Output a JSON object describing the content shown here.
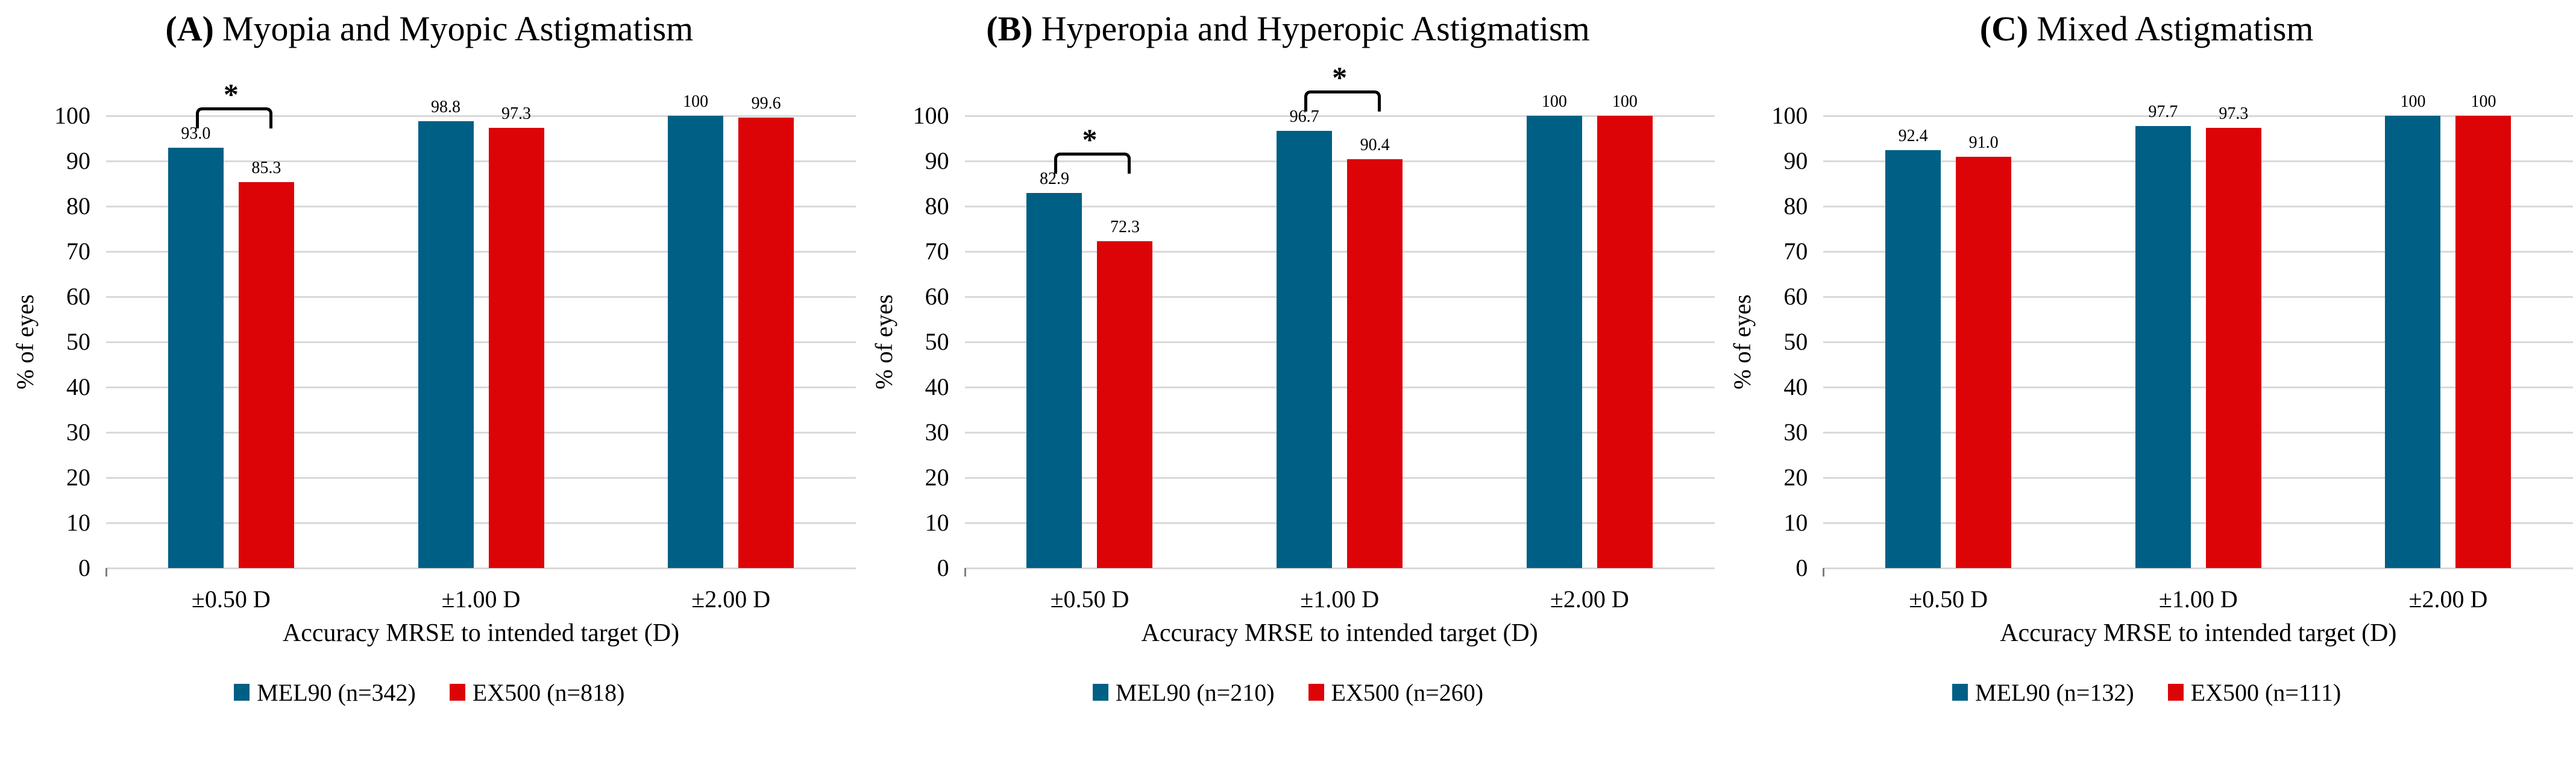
{
  "figure": {
    "y_axis_label": "% of eyes",
    "x_axis_label": "Accuracy MRSE to intended target (D)",
    "y_ticks": [
      0,
      10,
      20,
      30,
      40,
      50,
      60,
      70,
      80,
      90,
      100
    ],
    "significance_symbol": "*",
    "colors": {
      "mel90": "#005F85",
      "ex500": "#DC0407",
      "gridline": "#D9D9D9",
      "text": "#000000",
      "background": "#FFFFFF"
    }
  },
  "chart_data": [
    {
      "type": "bar",
      "panel": "A",
      "title_marker": "(A)",
      "title_text": "Myopia and Myopic Astigmatism",
      "categories": [
        "±0.50 D",
        "±1.00 D",
        "±2.00 D"
      ],
      "series": [
        {
          "name": "MEL90 (n=342)",
          "color_key": "mel90",
          "values": [
            93.0,
            98.8,
            100
          ],
          "labels": [
            "93.0",
            "98.8",
            "100"
          ]
        },
        {
          "name": "EX500 (n=818)",
          "color_key": "ex500",
          "values": [
            85.3,
            97.3,
            99.6
          ],
          "labels": [
            "85.3",
            "97.3",
            "99.6"
          ]
        }
      ],
      "significance_groups": [
        0
      ],
      "xlabel": "Accuracy MRSE to intended target (D)",
      "ylabel": "% of eyes",
      "ylim": [
        0,
        100
      ],
      "ytick_step": 10,
      "grid": true,
      "legend_position": "bottom"
    },
    {
      "type": "bar",
      "panel": "B",
      "title_marker": "(B)",
      "title_text": "Hyperopia and Hyperopic Astigmatism",
      "categories": [
        "±0.50 D",
        "±1.00 D",
        "±2.00 D"
      ],
      "series": [
        {
          "name": "MEL90 (n=210)",
          "color_key": "mel90",
          "values": [
            82.9,
            96.7,
            100
          ],
          "labels": [
            "82.9",
            "96.7",
            "100"
          ]
        },
        {
          "name": "EX500 (n=260)",
          "color_key": "ex500",
          "values": [
            72.3,
            90.4,
            100
          ],
          "labels": [
            "72.3",
            "90.4",
            "100"
          ]
        }
      ],
      "significance_groups": [
        0,
        1
      ],
      "xlabel": "Accuracy MRSE to intended target (D)",
      "ylabel": "% of eyes",
      "ylim": [
        0,
        100
      ],
      "ytick_step": 10,
      "grid": true,
      "legend_position": "bottom"
    },
    {
      "type": "bar",
      "panel": "C",
      "title_marker": "(C)",
      "title_text": "Mixed Astigmatism",
      "categories": [
        "±0.50 D",
        "±1.00 D",
        "±2.00 D"
      ],
      "series": [
        {
          "name": "MEL90 (n=132)",
          "color_key": "mel90",
          "values": [
            92.4,
            97.7,
            100
          ],
          "labels": [
            "92.4",
            "97.7",
            "100"
          ]
        },
        {
          "name": "EX500 (n=111)",
          "color_key": "ex500",
          "values": [
            91.0,
            97.3,
            100
          ],
          "labels": [
            "91.0",
            "97.3",
            "100"
          ]
        }
      ],
      "significance_groups": [],
      "xlabel": "Accuracy MRSE to intended target (D)",
      "ylabel": "% of eyes",
      "ylim": [
        0,
        100
      ],
      "ytick_step": 10,
      "grid": true,
      "legend_position": "bottom"
    }
  ]
}
